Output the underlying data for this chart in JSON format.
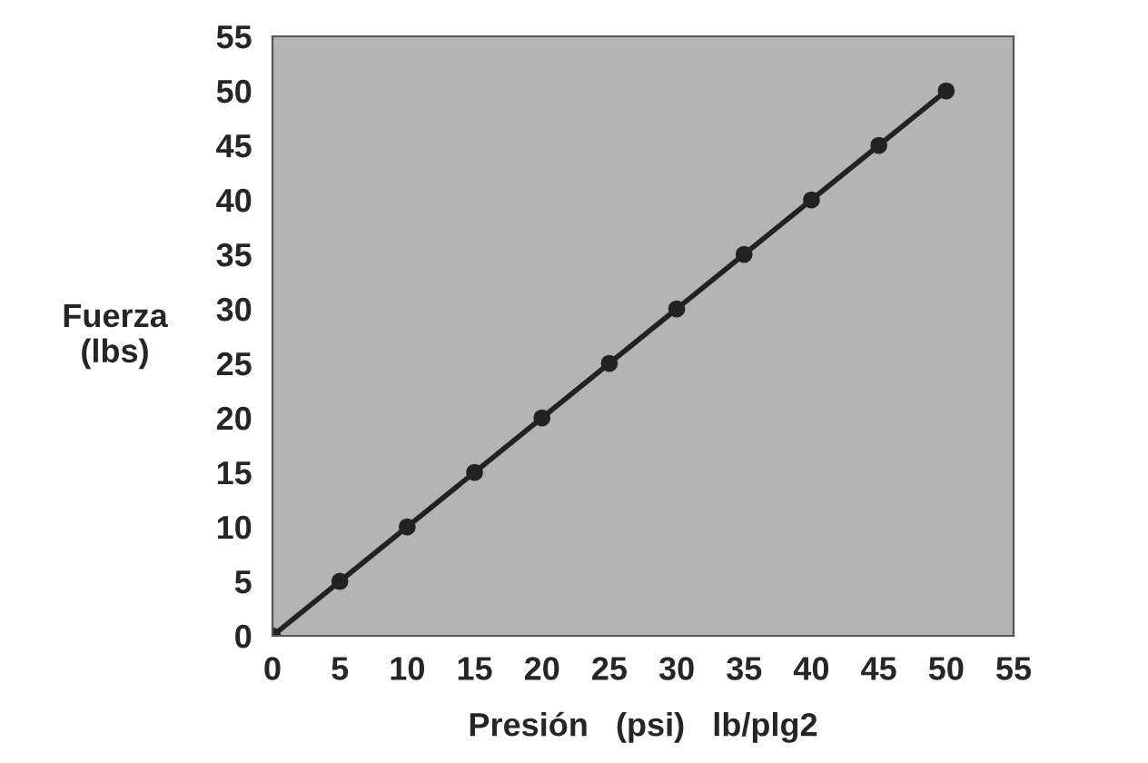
{
  "chart_data": {
    "type": "line",
    "xlabel": "Presión   (psi)   lb/plg2",
    "ylabel": "Fuerza\n(lbs)",
    "x": [
      0,
      5,
      10,
      15,
      20,
      25,
      30,
      35,
      40,
      45,
      50
    ],
    "series": [
      {
        "color": "#222222",
        "values": [
          0,
          5,
          10,
          15,
          20,
          25,
          30,
          35,
          40,
          45,
          50
        ]
      }
    ],
    "xlim": [
      0,
      55
    ],
    "ylim": [
      0,
      55
    ],
    "xticks": [
      0,
      5,
      10,
      15,
      20,
      25,
      30,
      35,
      40,
      45,
      50,
      55
    ],
    "yticks": [
      0,
      5,
      10,
      15,
      20,
      25,
      30,
      35,
      40,
      45,
      50,
      55
    ],
    "marker": "circle",
    "line_style": "solid",
    "grid": false,
    "legend": false
  }
}
